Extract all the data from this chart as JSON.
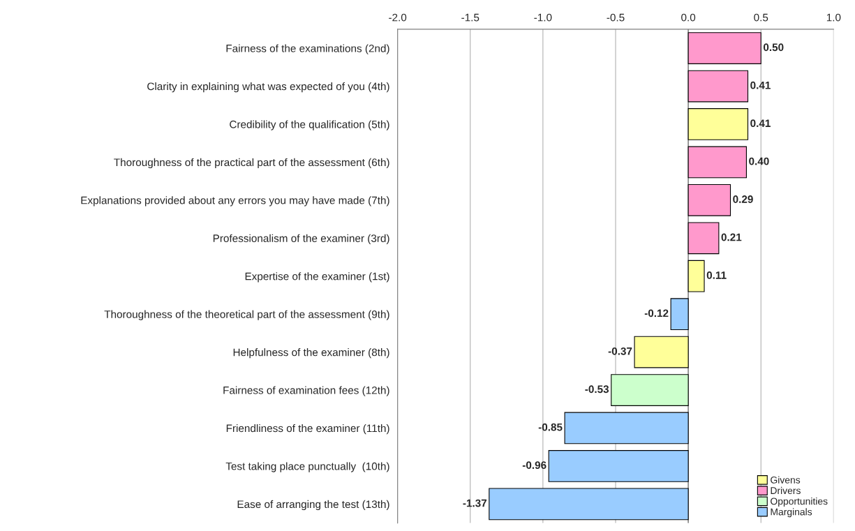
{
  "chart_data": {
    "type": "bar",
    "orientation": "horizontal",
    "categories": [
      "Fairness of the examinations (2nd)",
      "Clarity in explaining what was expected of you (4th)",
      "Credibility of the qualification (5th)",
      "Thoroughness of the practical part of the assessment (6th)",
      "Explanations provided about any errors you may have made (7th)",
      "Professionalism of the examiner (3rd)",
      "Expertise of the examiner (1st)",
      "Thoroughness of the theoretical part of the assessment (9th)",
      "Helpfulness of the examiner (8th)",
      "Fairness of examination fees (12th)",
      "Friendliness of the examiner (11th)",
      "Test taking place punctually  (10th)",
      "Ease of arranging the test (13th)"
    ],
    "series": [
      {
        "name": "Givens",
        "color": "#ffff99",
        "values": [
          null,
          null,
          0.41,
          null,
          null,
          null,
          0.11,
          null,
          -0.37,
          null,
          null,
          null,
          null
        ],
        "value_labels": [
          null,
          null,
          "0.41",
          null,
          null,
          null,
          "0.11",
          null,
          "-0.37",
          null,
          null,
          null,
          null
        ]
      },
      {
        "name": "Drivers",
        "color": "#ff99cc",
        "values": [
          0.5,
          0.41,
          null,
          0.4,
          0.29,
          0.21,
          null,
          null,
          null,
          null,
          null,
          null,
          null
        ],
        "value_labels": [
          "0.50",
          "0.41",
          null,
          "0.40",
          "0.29",
          "0.21",
          null,
          null,
          null,
          null,
          null,
          null,
          null
        ]
      },
      {
        "name": "Opportunities",
        "color": "#ccffcc",
        "values": [
          null,
          null,
          null,
          null,
          null,
          null,
          null,
          null,
          null,
          -0.53,
          null,
          null,
          null
        ],
        "value_labels": [
          null,
          null,
          null,
          null,
          null,
          null,
          null,
          null,
          null,
          "-0.53",
          null,
          null,
          null
        ]
      },
      {
        "name": "Marginals",
        "color": "#99ccff",
        "values": [
          null,
          null,
          null,
          null,
          null,
          null,
          null,
          -0.12,
          null,
          null,
          -0.85,
          -0.96,
          -1.37
        ],
        "value_labels": [
          null,
          null,
          null,
          null,
          null,
          null,
          null,
          "-0.12",
          null,
          null,
          "-0.85",
          "-0.96",
          "-1.37"
        ]
      }
    ],
    "xlim": [
      -2.0,
      1.0
    ],
    "xticks": [
      {
        "value": -2.0,
        "label": "-2.0"
      },
      {
        "value": -1.5,
        "label": "-1.5"
      },
      {
        "value": -1.0,
        "label": "-1.0"
      },
      {
        "value": -0.5,
        "label": "-0.5"
      },
      {
        "value": 0.0,
        "label": "0.0"
      },
      {
        "value": 0.5,
        "label": "0.5"
      },
      {
        "value": 1.0,
        "label": "1.0"
      }
    ],
    "grid": "x",
    "legend": "bottom right"
  }
}
